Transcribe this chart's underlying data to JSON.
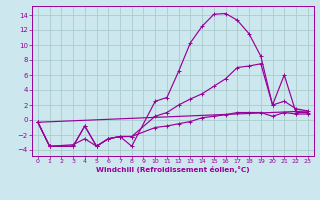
{
  "xlabel": "Windchill (Refroidissement éolien,°C)",
  "bg_color": "#cce8ee",
  "grid_color": "#aacccc",
  "line_color": "#990099",
  "xlim": [
    -0.5,
    23.5
  ],
  "ylim": [
    -4.8,
    15.2
  ],
  "xticks": [
    0,
    1,
    2,
    3,
    4,
    5,
    6,
    7,
    8,
    9,
    10,
    11,
    12,
    13,
    14,
    15,
    16,
    17,
    18,
    19,
    20,
    21,
    22,
    23
  ],
  "yticks": [
    -4,
    -2,
    0,
    2,
    4,
    6,
    8,
    10,
    12,
    14
  ],
  "curve_upper_x": [
    0,
    1,
    3,
    4,
    5,
    6,
    7,
    8,
    10,
    11,
    12,
    13,
    14,
    15,
    16,
    17,
    18,
    19,
    20,
    21,
    22,
    23
  ],
  "curve_upper_y": [
    -0.3,
    -3.5,
    -3.5,
    -0.8,
    -3.5,
    -2.5,
    -2.2,
    -3.5,
    2.5,
    3.0,
    6.5,
    10.3,
    12.5,
    14.1,
    14.2,
    13.3,
    11.5,
    8.5,
    2.0,
    6.0,
    1.0,
    1.0
  ],
  "curve_mid_x": [
    0,
    1,
    3,
    4,
    5,
    6,
    7,
    8,
    10,
    11,
    12,
    13,
    14,
    15,
    16,
    17,
    18,
    19,
    20,
    21,
    22,
    23
  ],
  "curve_mid_y": [
    -0.3,
    -3.5,
    -3.5,
    -0.8,
    -3.5,
    -2.5,
    -2.2,
    -2.2,
    0.5,
    1.0,
    2.0,
    2.8,
    3.5,
    4.5,
    5.5,
    7.0,
    7.2,
    7.5,
    2.0,
    2.5,
    1.5,
    1.2
  ],
  "curve_low_x": [
    0,
    1,
    3,
    4,
    5,
    6,
    7,
    8,
    10,
    11,
    12,
    13,
    14,
    15,
    16,
    17,
    18,
    19,
    20,
    21,
    22,
    23
  ],
  "curve_low_y": [
    -0.3,
    -3.5,
    -3.3,
    -2.5,
    -3.5,
    -2.5,
    -2.2,
    -2.2,
    -1.0,
    -0.8,
    -0.5,
    -0.2,
    0.3,
    0.5,
    0.7,
    1.0,
    1.0,
    1.0,
    0.5,
    1.0,
    0.8,
    0.8
  ],
  "ref_line_x": [
    0,
    23
  ],
  "ref_line_y": [
    -0.3,
    1.2
  ]
}
